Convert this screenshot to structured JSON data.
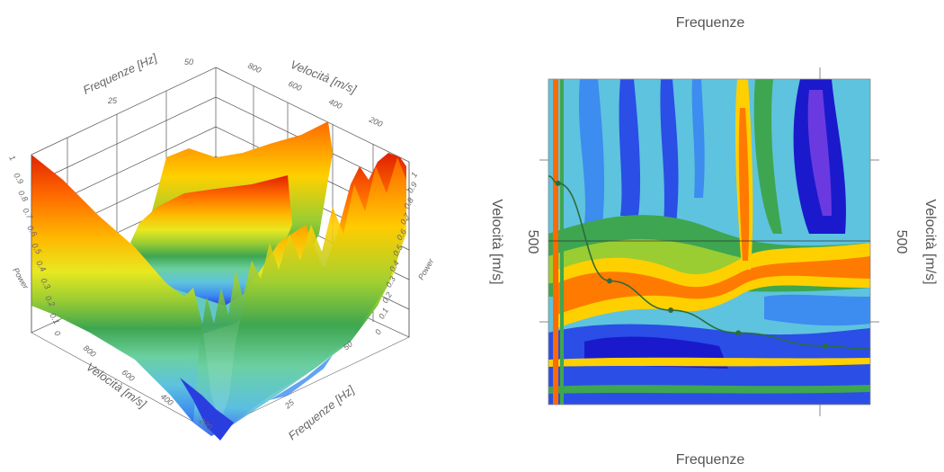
{
  "left_chart": {
    "chart_data": {
      "type": "surface",
      "x_axis_label": "Frequenze [Hz]",
      "y_axis_label": "Velocità [m/s]",
      "z_axis_label": "Power",
      "x_ticks": [
        "25",
        "50"
      ],
      "x_ticks_front": [
        "50",
        "25"
      ],
      "y_ticks_back": [
        "800",
        "600",
        "400",
        "200"
      ],
      "y_ticks_front": [
        "800",
        "600",
        "400",
        "200"
      ],
      "z_ticks": [
        "1",
        "0.9",
        "0.8",
        "0.7",
        "0.6",
        "0.5",
        "0.4",
        "0.3",
        "0.2",
        "0.1",
        "0"
      ],
      "zlim": [
        0,
        1
      ]
    }
  },
  "right_chart": {
    "chart_data": {
      "type": "heatmap",
      "title_top": "Frequenze",
      "title_bottom": "Frequenze",
      "ylabel_left": "Velocità [m/s]",
      "ylabel_right": "Velocità [m/s]",
      "y_tick_left": "500",
      "y_tick_right": "500",
      "dispersion_curve_points": [
        {
          "x": 0.03,
          "y": 0.32
        },
        {
          "x": 0.19,
          "y": 0.62
        },
        {
          "x": 0.38,
          "y": 0.71
        },
        {
          "x": 0.59,
          "y": 0.78
        },
        {
          "x": 0.86,
          "y": 0.82
        }
      ]
    }
  },
  "colors": {
    "palette": [
      "#1a1acc",
      "#2a4ee6",
      "#3d8cf0",
      "#5ec3de",
      "#6bd0a0",
      "#3ea650",
      "#2d8a3a",
      "#9acd32",
      "#e8e820",
      "#ffd000",
      "#ff9a00",
      "#ff5a00",
      "#e02000"
    ],
    "curve": "#2e6b3d"
  }
}
